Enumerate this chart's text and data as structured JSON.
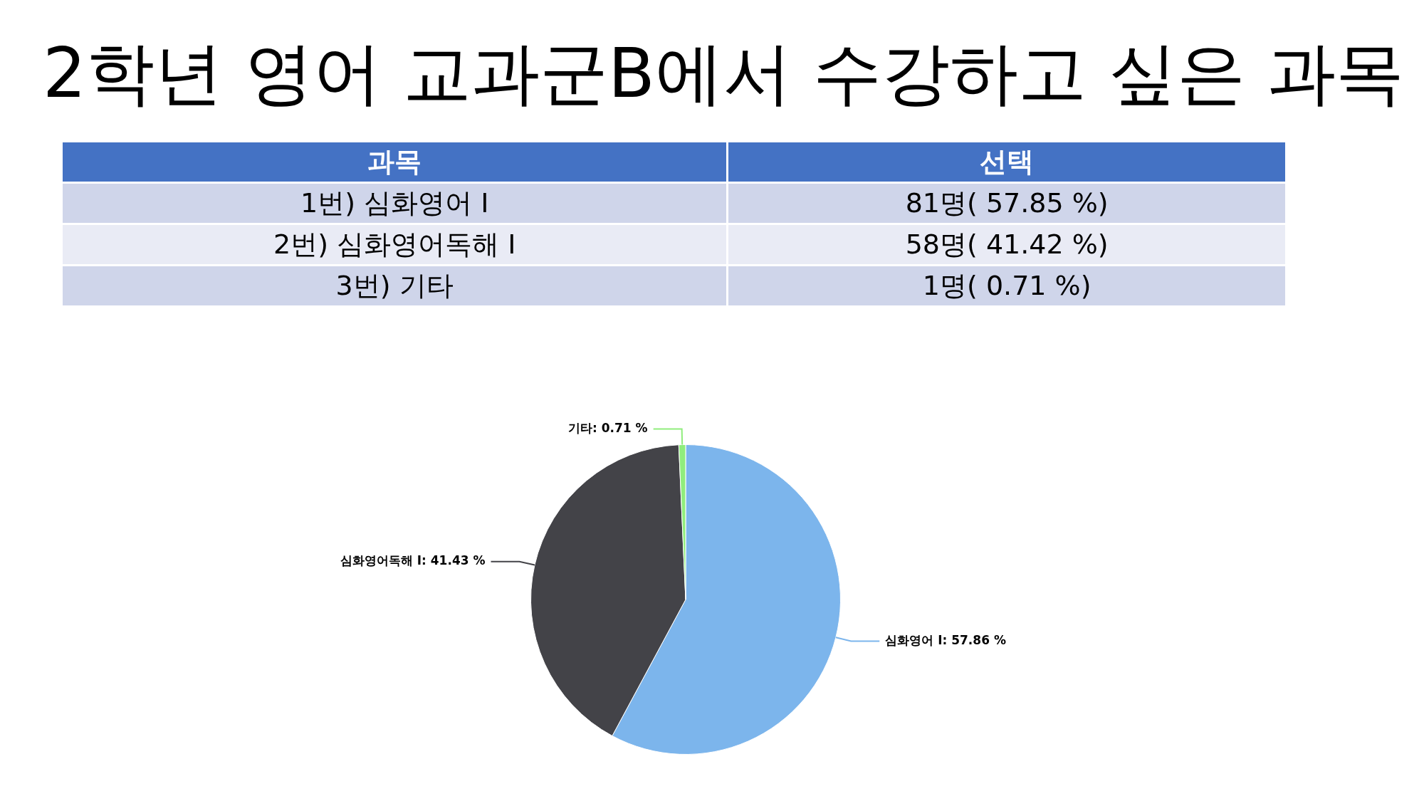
{
  "chart_data": {
    "type": "pie",
    "title": "2학년 영어 교과군B에서 수강하고 싶은 과목",
    "categories": [
      "심화영어 Ⅰ",
      "심화영어독해 Ⅰ",
      "기타"
    ],
    "values": [
      57.86,
      41.43,
      0.71
    ],
    "value_labels": [
      "57.86 %",
      "41.43 %",
      "0.71 %"
    ],
    "colors": [
      "#7cb5ec",
      "#434348",
      "#90ed7d"
    ],
    "legend": false,
    "annotations": [
      "과목",
      "선택",
      "1번) 심화영어 Ⅰ",
      "81명( 57.85 %)",
      "2번) 심화영어독해 Ⅰ",
      "58명( 41.42 %)",
      "3번) 기타",
      "1명( 0.71 %)"
    ]
  }
}
